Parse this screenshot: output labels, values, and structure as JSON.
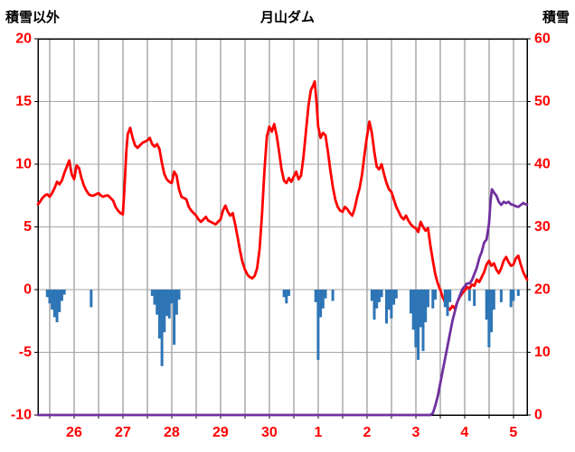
{
  "chart_data": {
    "type": "line",
    "title": "月山ダム",
    "legend": "none",
    "grid": true,
    "x_axis": {
      "domain": [
        -0.74,
        9.28
      ],
      "tick_positions": [
        0,
        1,
        2,
        3,
        4,
        5,
        6,
        7,
        8,
        9
      ],
      "tick_labels": [
        "26",
        "27",
        "28",
        "29",
        "30",
        "1",
        "2",
        "3",
        "4",
        "5"
      ],
      "minor_grid_start": -0.5,
      "minor_grid_end": 9.0,
      "minor_grid_step": 0.5
    },
    "left_axis": {
      "title": "積雪以外",
      "min": -10,
      "max": 20,
      "ticks": [
        20,
        15,
        10,
        5,
        0,
        -5,
        -10
      ]
    },
    "right_axis": {
      "title": "積雪",
      "min": 0,
      "max": 60,
      "ticks": [
        60,
        50,
        40,
        30,
        20,
        10,
        0
      ]
    },
    "colors": {
      "red_line": "#FF0000",
      "purple_line": "#7030A0",
      "blue_bars": "#2E75B6",
      "grid_vertical": "#7F7F7F",
      "grid_horizontal": "#A6A6A6",
      "axis_border": "#000000",
      "tick_label": "#FF0000",
      "title_text": "#000000"
    },
    "series": [
      {
        "name": "red-line",
        "type": "line",
        "axis": "left",
        "color": "#FF0000",
        "points": [
          [
            -0.74,
            6.8
          ],
          [
            -0.7,
            7.0
          ],
          [
            -0.65,
            7.3
          ],
          [
            -0.6,
            7.5
          ],
          [
            -0.55,
            7.6
          ],
          [
            -0.5,
            7.4
          ],
          [
            -0.45,
            7.7
          ],
          [
            -0.4,
            8.1
          ],
          [
            -0.35,
            8.6
          ],
          [
            -0.3,
            8.4
          ],
          [
            -0.25,
            8.7
          ],
          [
            -0.2,
            9.3
          ],
          [
            -0.15,
            9.8
          ],
          [
            -0.1,
            10.3
          ],
          [
            -0.05,
            9.2
          ],
          [
            0,
            8.8
          ],
          [
            0.05,
            9.9
          ],
          [
            0.1,
            9.7
          ],
          [
            0.15,
            8.9
          ],
          [
            0.2,
            8.3
          ],
          [
            0.25,
            7.9
          ],
          [
            0.3,
            7.6
          ],
          [
            0.35,
            7.5
          ],
          [
            0.4,
            7.5
          ],
          [
            0.45,
            7.6
          ],
          [
            0.5,
            7.7
          ],
          [
            0.55,
            7.5
          ],
          [
            0.6,
            7.4
          ],
          [
            0.65,
            7.5
          ],
          [
            0.7,
            7.5
          ],
          [
            0.75,
            7.3
          ],
          [
            0.8,
            7.1
          ],
          [
            0.85,
            6.6
          ],
          [
            0.9,
            6.3
          ],
          [
            0.95,
            6.1
          ],
          [
            1,
            6.0
          ],
          [
            1.03,
            8.0
          ],
          [
            1.07,
            11.0
          ],
          [
            1.1,
            12.4
          ],
          [
            1.15,
            12.9
          ],
          [
            1.2,
            12.1
          ],
          [
            1.25,
            11.5
          ],
          [
            1.3,
            11.3
          ],
          [
            1.35,
            11.5
          ],
          [
            1.4,
            11.7
          ],
          [
            1.45,
            11.8
          ],
          [
            1.5,
            11.9
          ],
          [
            1.55,
            12.1
          ],
          [
            1.6,
            11.6
          ],
          [
            1.65,
            11.4
          ],
          [
            1.7,
            11.6
          ],
          [
            1.75,
            11.2
          ],
          [
            1.8,
            10.1
          ],
          [
            1.85,
            9.2
          ],
          [
            1.9,
            8.8
          ],
          [
            1.95,
            8.6
          ],
          [
            2,
            8.5
          ],
          [
            2.05,
            9.4
          ],
          [
            2.1,
            9.1
          ],
          [
            2.15,
            8.0
          ],
          [
            2.2,
            7.4
          ],
          [
            2.25,
            7.3
          ],
          [
            2.3,
            7.2
          ],
          [
            2.35,
            6.6
          ],
          [
            2.4,
            6.3
          ],
          [
            2.45,
            6.1
          ],
          [
            2.5,
            5.9
          ],
          [
            2.55,
            5.6
          ],
          [
            2.6,
            5.4
          ],
          [
            2.65,
            5.6
          ],
          [
            2.7,
            5.8
          ],
          [
            2.75,
            5.5
          ],
          [
            2.8,
            5.4
          ],
          [
            2.85,
            5.3
          ],
          [
            2.9,
            5.2
          ],
          [
            2.95,
            5.4
          ],
          [
            3,
            5.6
          ],
          [
            3.05,
            6.3
          ],
          [
            3.1,
            6.7
          ],
          [
            3.15,
            6.2
          ],
          [
            3.2,
            5.9
          ],
          [
            3.25,
            6.1
          ],
          [
            3.3,
            5.2
          ],
          [
            3.35,
            4.2
          ],
          [
            3.4,
            3.1
          ],
          [
            3.45,
            2.2
          ],
          [
            3.5,
            1.6
          ],
          [
            3.55,
            1.2
          ],
          [
            3.6,
            1.0
          ],
          [
            3.65,
            0.9
          ],
          [
            3.7,
            1.1
          ],
          [
            3.75,
            1.7
          ],
          [
            3.8,
            3.2
          ],
          [
            3.85,
            6.0
          ],
          [
            3.9,
            9.5
          ],
          [
            3.95,
            12.2
          ],
          [
            4,
            13.0
          ],
          [
            4.05,
            12.6
          ],
          [
            4.1,
            13.2
          ],
          [
            4.15,
            12.3
          ],
          [
            4.2,
            11.0
          ],
          [
            4.25,
            9.6
          ],
          [
            4.3,
            8.7
          ],
          [
            4.35,
            8.5
          ],
          [
            4.4,
            8.9
          ],
          [
            4.45,
            8.6
          ],
          [
            4.5,
            9.0
          ],
          [
            4.55,
            9.4
          ],
          [
            4.6,
            8.8
          ],
          [
            4.65,
            9.1
          ],
          [
            4.7,
            10.6
          ],
          [
            4.75,
            12.6
          ],
          [
            4.8,
            14.6
          ],
          [
            4.85,
            15.9
          ],
          [
            4.9,
            16.3
          ],
          [
            4.93,
            16.6
          ],
          [
            4.97,
            14.8
          ],
          [
            5,
            13.0
          ],
          [
            5.05,
            12.1
          ],
          [
            5.1,
            12.5
          ],
          [
            5.15,
            12.3
          ],
          [
            5.2,
            11.0
          ],
          [
            5.25,
            9.5
          ],
          [
            5.3,
            8.2
          ],
          [
            5.35,
            7.2
          ],
          [
            5.4,
            6.6
          ],
          [
            5.45,
            6.3
          ],
          [
            5.5,
            6.2
          ],
          [
            5.55,
            6.6
          ],
          [
            5.6,
            6.4
          ],
          [
            5.65,
            6.1
          ],
          [
            5.7,
            5.9
          ],
          [
            5.75,
            6.5
          ],
          [
            5.8,
            7.4
          ],
          [
            5.85,
            8.1
          ],
          [
            5.9,
            9.2
          ],
          [
            5.95,
            10.8
          ],
          [
            6,
            12.2
          ],
          [
            6.05,
            13.4
          ],
          [
            6.1,
            12.5
          ],
          [
            6.15,
            11.0
          ],
          [
            6.2,
            9.8
          ],
          [
            6.25,
            9.6
          ],
          [
            6.3,
            10.0
          ],
          [
            6.35,
            9.2
          ],
          [
            6.4,
            8.5
          ],
          [
            6.45,
            8.0
          ],
          [
            6.5,
            7.8
          ],
          [
            6.55,
            7.2
          ],
          [
            6.6,
            6.6
          ],
          [
            6.65,
            6.2
          ],
          [
            6.7,
            5.8
          ],
          [
            6.75,
            5.6
          ],
          [
            6.8,
            5.9
          ],
          [
            6.85,
            5.5
          ],
          [
            6.9,
            5.2
          ],
          [
            6.95,
            5.0
          ],
          [
            7,
            4.9
          ],
          [
            7.05,
            4.6
          ],
          [
            7.1,
            5.4
          ],
          [
            7.15,
            5.0
          ],
          [
            7.2,
            4.7
          ],
          [
            7.25,
            4.9
          ],
          [
            7.3,
            3.5
          ],
          [
            7.35,
            2.3
          ],
          [
            7.4,
            1.2
          ],
          [
            7.45,
            0.5
          ],
          [
            7.5,
            0.0
          ],
          [
            7.55,
            -0.6
          ],
          [
            7.6,
            -1.0
          ],
          [
            7.65,
            -1.4
          ],
          [
            7.7,
            -1.6
          ],
          [
            7.75,
            -1.3
          ],
          [
            7.8,
            -1.5
          ],
          [
            7.85,
            -1.0
          ],
          [
            7.9,
            -0.6
          ],
          [
            7.95,
            -0.3
          ],
          [
            8,
            -0.1
          ],
          [
            8.05,
            0.2
          ],
          [
            8.1,
            0.1
          ],
          [
            8.15,
            0.4
          ],
          [
            8.2,
            0.3
          ],
          [
            8.25,
            0.8
          ],
          [
            8.3,
            0.6
          ],
          [
            8.35,
            1.0
          ],
          [
            8.4,
            1.4
          ],
          [
            8.45,
            2.0
          ],
          [
            8.5,
            2.3
          ],
          [
            8.55,
            1.9
          ],
          [
            8.6,
            2.1
          ],
          [
            8.65,
            1.6
          ],
          [
            8.7,
            1.3
          ],
          [
            8.75,
            1.7
          ],
          [
            8.8,
            2.3
          ],
          [
            8.85,
            2.6
          ],
          [
            8.9,
            2.2
          ],
          [
            8.95,
            1.9
          ],
          [
            9,
            2.0
          ],
          [
            9.05,
            2.5
          ],
          [
            9.1,
            2.7
          ],
          [
            9.15,
            2.0
          ],
          [
            9.2,
            1.4
          ],
          [
            9.25,
            1.0
          ],
          [
            9.28,
            0.8
          ]
        ]
      },
      {
        "name": "purple-line",
        "type": "line",
        "axis": "right",
        "color": "#7030A0",
        "points": [
          [
            -0.74,
            0
          ],
          [
            7.3,
            0
          ],
          [
            7.35,
            0.3
          ],
          [
            7.4,
            1.5
          ],
          [
            7.45,
            3
          ],
          [
            7.5,
            5
          ],
          [
            7.55,
            7
          ],
          [
            7.6,
            9
          ],
          [
            7.65,
            11
          ],
          [
            7.7,
            13
          ],
          [
            7.75,
            15
          ],
          [
            7.8,
            16.5
          ],
          [
            7.85,
            18
          ],
          [
            7.9,
            19
          ],
          [
            7.95,
            20
          ],
          [
            8,
            20.5
          ],
          [
            8.05,
            21
          ],
          [
            8.1,
            21
          ],
          [
            8.15,
            21.5
          ],
          [
            8.2,
            22.5
          ],
          [
            8.25,
            23.5
          ],
          [
            8.3,
            25
          ],
          [
            8.35,
            26
          ],
          [
            8.4,
            27.5
          ],
          [
            8.45,
            28
          ],
          [
            8.5,
            30.5
          ],
          [
            8.53,
            34
          ],
          [
            8.56,
            36
          ],
          [
            8.6,
            35.5
          ],
          [
            8.65,
            35
          ],
          [
            8.7,
            34
          ],
          [
            8.75,
            33.5
          ],
          [
            8.8,
            34
          ],
          [
            8.85,
            33.8
          ],
          [
            8.9,
            34
          ],
          [
            8.95,
            33.6
          ],
          [
            9,
            33.5
          ],
          [
            9.05,
            33.3
          ],
          [
            9.1,
            33.2
          ],
          [
            9.15,
            33.5
          ],
          [
            9.2,
            33.8
          ],
          [
            9.25,
            33.6
          ],
          [
            9.28,
            33.6
          ]
        ]
      },
      {
        "name": "blue-bars",
        "type": "bar",
        "axis": "left",
        "color": "#2E75B6",
        "points": [
          [
            -0.55,
            -0.6
          ],
          [
            -0.5,
            -1.1
          ],
          [
            -0.45,
            -1.6
          ],
          [
            -0.4,
            -2.2
          ],
          [
            -0.35,
            -2.6
          ],
          [
            -0.3,
            -1.8
          ],
          [
            -0.25,
            -0.9
          ],
          [
            -0.2,
            -0.4
          ],
          [
            0.35,
            -1.4
          ],
          [
            1.6,
            -0.5
          ],
          [
            1.65,
            -1.2
          ],
          [
            1.7,
            -2.0
          ],
          [
            1.75,
            -3.9
          ],
          [
            1.8,
            -6.1
          ],
          [
            1.85,
            -3.4
          ],
          [
            1.9,
            -2.1
          ],
          [
            1.95,
            -2.3
          ],
          [
            2,
            -1.1
          ],
          [
            2.05,
            -4.4
          ],
          [
            2.1,
            -2.0
          ],
          [
            2.15,
            -0.8
          ],
          [
            4.3,
            -0.6
          ],
          [
            4.35,
            -1.1
          ],
          [
            4.4,
            -0.5
          ],
          [
            4.95,
            -1.0
          ],
          [
            5,
            -5.6
          ],
          [
            5.05,
            -2.2
          ],
          [
            5.1,
            -1.5
          ],
          [
            5.15,
            -0.7
          ],
          [
            5.3,
            -0.9
          ],
          [
            6.1,
            -0.9
          ],
          [
            6.15,
            -2.4
          ],
          [
            6.2,
            -1.5
          ],
          [
            6.25,
            -1.0
          ],
          [
            6.3,
            -0.6
          ],
          [
            6.4,
            -2.7
          ],
          [
            6.45,
            -1.6
          ],
          [
            6.5,
            -2.3
          ],
          [
            6.55,
            -1.2
          ],
          [
            6.6,
            -0.7
          ],
          [
            6.9,
            -1.9
          ],
          [
            6.95,
            -3.2
          ],
          [
            7,
            -4.6
          ],
          [
            7.05,
            -5.6
          ],
          [
            7.1,
            -3.0
          ],
          [
            7.15,
            -4.9
          ],
          [
            7.2,
            -2.6
          ],
          [
            7.25,
            -1.4
          ],
          [
            7.35,
            -1.5
          ],
          [
            7.4,
            -0.8
          ],
          [
            7.6,
            -1.4
          ],
          [
            7.65,
            -2.1
          ],
          [
            7.7,
            -1.0
          ],
          [
            8.1,
            -0.9
          ],
          [
            8.2,
            -1.3
          ],
          [
            8.45,
            -2.4
          ],
          [
            8.5,
            -4.6
          ],
          [
            8.55,
            -3.4
          ],
          [
            8.6,
            -1.6
          ],
          [
            8.75,
            -1.0
          ],
          [
            8.95,
            -1.4
          ],
          [
            9,
            -0.9
          ],
          [
            9.1,
            -0.5
          ]
        ]
      }
    ]
  }
}
